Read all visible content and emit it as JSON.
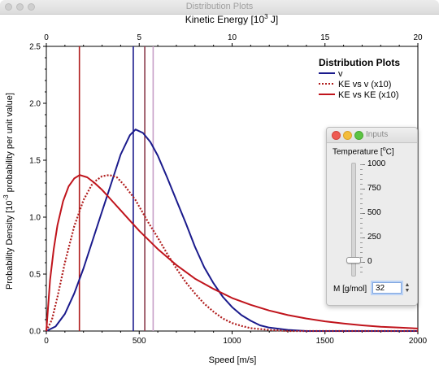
{
  "window": {
    "title": "Distribution Plots"
  },
  "chart_data": {
    "type": "line",
    "xlabel": "Speed [m/s]",
    "x_top_label": "Kinetic Energy [10",
    "x_top_label_sup": "3",
    "x_top_label_tail": " J]",
    "ylabel": "Probability Density [10",
    "ylabel_sup": "-3",
    "ylabel_tail": " probability per unit value]",
    "xlim": [
      0,
      2000
    ],
    "ylim": [
      0,
      2.5
    ],
    "x_top_lim": [
      0,
      20
    ],
    "x_ticks": [
      0,
      500,
      1000,
      1500,
      2000
    ],
    "x_tick_labels": [
      "0",
      "500",
      "1000",
      "1500",
      "2000"
    ],
    "y_ticks": [
      0,
      0.5,
      1,
      1.5,
      2,
      2.5
    ],
    "y_tick_labels": [
      "0.0",
      "0.5",
      "1.0",
      "1.5",
      "2.0",
      "2.5"
    ],
    "x_top_ticks": [
      0,
      5,
      10,
      15,
      20
    ],
    "x_top_tick_labels": [
      "0",
      "5",
      "10",
      "15",
      "20"
    ],
    "legend": {
      "title": "Distribution Plots",
      "placement": "top-right"
    },
    "series": [
      {
        "name": "v",
        "color": "#1a1a8c",
        "style": "solid",
        "points": [
          [
            0,
            0
          ],
          [
            50,
            0.04
          ],
          [
            100,
            0.15
          ],
          [
            150,
            0.33
          ],
          [
            200,
            0.55
          ],
          [
            250,
            0.8
          ],
          [
            300,
            1.05
          ],
          [
            350,
            1.3
          ],
          [
            400,
            1.55
          ],
          [
            450,
            1.72
          ],
          [
            480,
            1.77
          ],
          [
            520,
            1.74
          ],
          [
            560,
            1.66
          ],
          [
            600,
            1.54
          ],
          [
            650,
            1.35
          ],
          [
            700,
            1.15
          ],
          [
            750,
            0.95
          ],
          [
            800,
            0.74
          ],
          [
            850,
            0.56
          ],
          [
            900,
            0.42
          ],
          [
            950,
            0.3
          ],
          [
            1000,
            0.21
          ],
          [
            1050,
            0.14
          ],
          [
            1100,
            0.09
          ],
          [
            1150,
            0.05
          ],
          [
            1200,
            0.03
          ],
          [
            1300,
            0.01
          ],
          [
            1400,
            0
          ],
          [
            1600,
            0
          ],
          [
            2000,
            0
          ]
        ]
      },
      {
        "name": "KE vs v (x10)",
        "color": "#b01c1c",
        "style": "dotted",
        "points": [
          [
            0,
            0
          ],
          [
            30,
            0.1
          ],
          [
            60,
            0.3
          ],
          [
            100,
            0.6
          ],
          [
            150,
            0.92
          ],
          [
            200,
            1.15
          ],
          [
            250,
            1.3
          ],
          [
            300,
            1.36
          ],
          [
            340,
            1.37
          ],
          [
            380,
            1.35
          ],
          [
            420,
            1.28
          ],
          [
            480,
            1.15
          ],
          [
            550,
            0.95
          ],
          [
            600,
            0.82
          ],
          [
            650,
            0.68
          ],
          [
            700,
            0.55
          ],
          [
            750,
            0.43
          ],
          [
            800,
            0.33
          ],
          [
            850,
            0.24
          ],
          [
            900,
            0.17
          ],
          [
            950,
            0.11
          ],
          [
            1000,
            0.07
          ],
          [
            1050,
            0.045
          ],
          [
            1100,
            0.025
          ],
          [
            1200,
            0.01
          ],
          [
            1300,
            0
          ],
          [
            2000,
            0
          ]
        ]
      },
      {
        "name": "KE vs KE (x10)",
        "color": "#c0141c",
        "style": "solid",
        "points": [
          [
            0,
            0
          ],
          [
            20,
            0.45
          ],
          [
            40,
            0.72
          ],
          [
            60,
            0.93
          ],
          [
            90,
            1.14
          ],
          [
            120,
            1.27
          ],
          [
            150,
            1.34
          ],
          [
            180,
            1.37
          ],
          [
            220,
            1.35
          ],
          [
            260,
            1.3
          ],
          [
            300,
            1.24
          ],
          [
            350,
            1.15
          ],
          [
            400,
            1.06
          ],
          [
            450,
            0.97
          ],
          [
            500,
            0.88
          ],
          [
            600,
            0.72
          ],
          [
            700,
            0.58
          ],
          [
            800,
            0.46
          ],
          [
            900,
            0.37
          ],
          [
            1000,
            0.29
          ],
          [
            1100,
            0.23
          ],
          [
            1200,
            0.18
          ],
          [
            1300,
            0.14
          ],
          [
            1400,
            0.11
          ],
          [
            1500,
            0.085
          ],
          [
            1600,
            0.066
          ],
          [
            1700,
            0.05
          ],
          [
            1800,
            0.038
          ],
          [
            1900,
            0.03
          ],
          [
            2000,
            0.022
          ]
        ]
      }
    ],
    "vertical_lines": [
      {
        "x": 178,
        "color": "#b01c1c"
      },
      {
        "x": 468,
        "color": "#1a1a8c"
      },
      {
        "x": 530,
        "color": "#8a3a4a"
      },
      {
        "x": 575,
        "color": "#c8a0c8"
      }
    ]
  },
  "inputs_panel": {
    "title": "Inputs",
    "temperature_label": "Temperature [",
    "temperature_sup": "o",
    "temperature_label_tail": "C]",
    "ticks": [
      "1000",
      "750",
      "500",
      "250",
      "0"
    ],
    "slider_value": 25,
    "slider_min": -100,
    "slider_max": 1000,
    "mass_label": "M [g/mol]",
    "mass_value": "32"
  }
}
